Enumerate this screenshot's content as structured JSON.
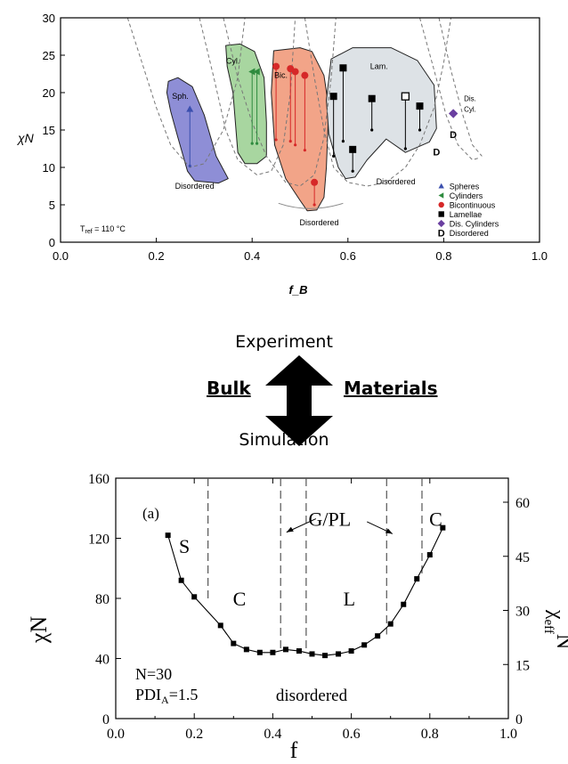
{
  "middle": {
    "top_label": "Experiment",
    "bottom_label": "Simulation",
    "left_label": "Bulk",
    "right_label": "Materials"
  },
  "chart_data": [
    {
      "type": "scatter",
      "title": "",
      "xlabel": "f_B",
      "ylabel": "χN",
      "xlim": [
        0.0,
        1.0
      ],
      "ylim": [
        0,
        30
      ],
      "xticks": [
        "0.0",
        "0.2",
        "0.4",
        "0.6",
        "0.8",
        "1.0"
      ],
      "yticks": [
        "0",
        "5",
        "10",
        "15",
        "20",
        "25",
        "30"
      ],
      "region_labels": [
        "Sph.",
        "Cyl.",
        "Bic.",
        "Lam.",
        "Dis.",
        "Cyl.",
        "Disordered",
        "Disordered",
        "Disordered",
        "D",
        "D"
      ],
      "annotation": {
        "text": "T",
        "sub": "ref",
        "rest": " = 110 °C"
      },
      "legend": {
        "placement": "lower-right",
        "entries": [
          {
            "name": "Spheres",
            "marker": "triangle-up",
            "color": "#3b4fae"
          },
          {
            "name": "Cylinders",
            "marker": "triangle-left",
            "color": "#2e8b3e"
          },
          {
            "name": "Bicontinuous",
            "marker": "circle",
            "color": "#d62828"
          },
          {
            "name": "Lamellae",
            "marker": "square",
            "color": "#000000"
          },
          {
            "name": "Dis. Cylinders",
            "marker": "diamond",
            "color": "#6a3fa0"
          },
          {
            "name": "Disordered",
            "marker": "letter-D",
            "color": "#000000"
          }
        ]
      },
      "regions": [
        {
          "name": "Spheres",
          "color": "#8e8ed6"
        },
        {
          "name": "Cylinders",
          "color": "#a8d6a0"
        },
        {
          "name": "Bicontinuous",
          "color": "#f2a488"
        },
        {
          "name": "Lamellae",
          "color": "#dde2e6"
        }
      ],
      "series": [
        {
          "name": "Spheres",
          "marker": "triangle-up",
          "color": "#3b4fae",
          "points": [
            {
              "x": 0.27,
              "y": 17.8,
              "y_low": 10.2
            }
          ]
        },
        {
          "name": "Cylinders",
          "marker": "triangle-left",
          "color": "#2e8b3e",
          "points": [
            {
              "x": 0.4,
              "y": 22.8,
              "y_low": 13.2
            },
            {
              "x": 0.41,
              "y": 22.8,
              "y_low": 13.2
            }
          ]
        },
        {
          "name": "Bicontinuous",
          "marker": "circle",
          "color": "#d62828",
          "points": [
            {
              "x": 0.45,
              "y": 23.5,
              "y_low": 13.7
            },
            {
              "x": 0.48,
              "y": 23.2,
              "y_low": 13.5
            },
            {
              "x": 0.49,
              "y": 22.8,
              "y_low": 13.0
            },
            {
              "x": 0.51,
              "y": 22.3,
              "y_low": 12.3
            },
            {
              "x": 0.53,
              "y": 8.0,
              "y_low": 5.0
            }
          ]
        },
        {
          "name": "Lamellae",
          "marker": "square",
          "color": "#000000",
          "points": [
            {
              "x": 0.57,
              "y": 19.5,
              "y_low": 11.5
            },
            {
              "x": 0.59,
              "y": 23.3,
              "y_low": 13.5
            },
            {
              "x": 0.61,
              "y": 12.4,
              "y_low": 9.5
            },
            {
              "x": 0.65,
              "y": 19.2,
              "y_low": 15.0
            },
            {
              "x": 0.75,
              "y": 18.2,
              "y_low": 15.0
            }
          ]
        },
        {
          "name": "Lamellae (open)",
          "marker": "square-open",
          "color": "#000000",
          "points": [
            {
              "x": 0.72,
              "y": 19.5,
              "y_low": 12.5
            }
          ]
        },
        {
          "name": "Dis. Cylinders",
          "marker": "diamond",
          "color": "#6a3fa0",
          "points": [
            {
              "x": 0.82,
              "y": 17.2
            }
          ]
        }
      ]
    },
    {
      "type": "line",
      "title": "",
      "panel_label": "(a)",
      "xlabel": "f",
      "ylabel": "χN",
      "ylabel_right": {
        "base": "χ",
        "sub": "eff",
        "sup": "N"
      },
      "xlim": [
        0.0,
        1.0
      ],
      "ylim": [
        0,
        160
      ],
      "ylim_right": [
        0,
        66.67
      ],
      "xticks": [
        "0.0",
        "0.2",
        "0.4",
        "0.6",
        "0.8",
        "1.0"
      ],
      "yticks": [
        "0",
        "40",
        "80",
        "120",
        "160"
      ],
      "yticks_right": [
        "0",
        "15",
        "30",
        "45",
        "60"
      ],
      "phase_labels": [
        "S",
        "C",
        "G/PL",
        "L",
        "C"
      ],
      "region_label": "disordered",
      "params": [
        {
          "text": "N=30"
        },
        {
          "text": "PDI",
          "sub": "A",
          "rest": "=1.5"
        }
      ],
      "phase_boundaries_x": [
        0.235,
        0.42,
        0.485,
        0.69,
        0.78
      ],
      "series": [
        {
          "marker": "square",
          "color": "#000000",
          "x": [
            0.133,
            0.167,
            0.2,
            0.267,
            0.3,
            0.333,
            0.367,
            0.4,
            0.433,
            0.467,
            0.5,
            0.533,
            0.567,
            0.6,
            0.633,
            0.667,
            0.7,
            0.733,
            0.767,
            0.8,
            0.833
          ],
          "y": [
            122,
            92,
            81,
            62,
            50,
            46,
            44,
            44,
            46,
            45,
            43,
            42,
            43,
            45,
            49,
            55,
            63,
            76,
            93,
            109,
            127
          ]
        }
      ]
    }
  ]
}
